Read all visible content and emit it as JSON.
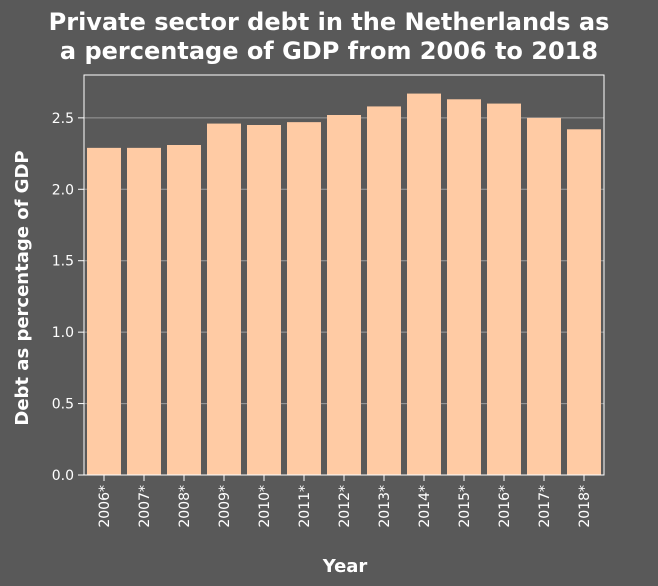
{
  "chart_data": {
    "type": "bar",
    "title_lines": [
      "Private sector debt in the Netherlands as",
      "a percentage of GDP from 2006 to 2018"
    ],
    "xlabel": "Year",
    "ylabel": "Debt as percentage of GDP",
    "categories": [
      "2006*",
      "2007*",
      "2008*",
      "2009*",
      "2010*",
      "2011*",
      "2012*",
      "2013*",
      "2014*",
      "2015*",
      "2016*",
      "2017*",
      "2018*"
    ],
    "values": [
      2.29,
      2.29,
      2.31,
      2.46,
      2.45,
      2.47,
      2.52,
      2.58,
      2.67,
      2.63,
      2.6,
      2.5,
      2.42
    ],
    "ylim": [
      0,
      2.8
    ],
    "yticks": [
      "0.0",
      "0.5",
      "1.0",
      "1.5",
      "2.0",
      "2.5"
    ],
    "grid": true,
    "colors": {
      "background": "#595959",
      "bar": "#ffcba4",
      "grid": "#9a9a9a",
      "axis": "#ffffff"
    }
  }
}
